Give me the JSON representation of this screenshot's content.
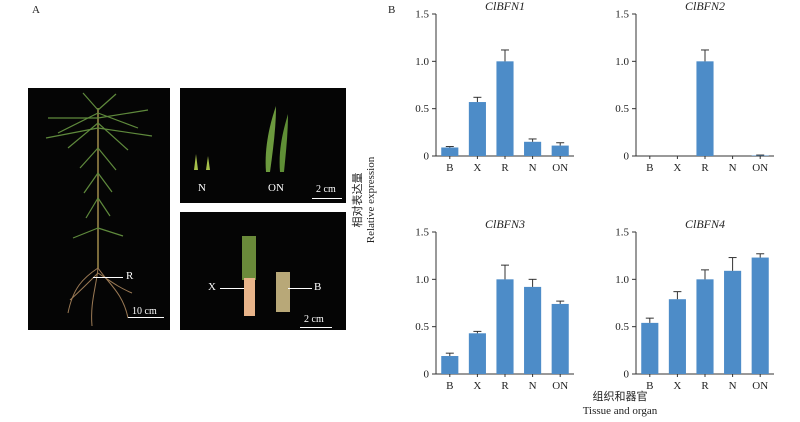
{
  "panel_a": {
    "label": "A",
    "main_photo": {
      "tissue_label": "R",
      "scale_bar": "10 cm"
    },
    "top_right_photo": {
      "needle_label": "N",
      "old_needle_label": "ON",
      "scale_bar": "2 cm"
    },
    "bottom_right_photo": {
      "xylem_label": "X",
      "bark_label": "B",
      "scale_bar": "2 cm"
    }
  },
  "panel_b": {
    "label": "B",
    "ylabel_cn": "相对表达量",
    "ylabel_en": "Relative expression",
    "xlabel_cn": "组织和器官",
    "xlabel_en": "Tissue and organ"
  },
  "colors": {
    "bar": "#4d8cc8",
    "axis": "#333333"
  },
  "chart_data": [
    {
      "type": "bar",
      "title": "ClBFN1",
      "categories": [
        "B",
        "X",
        "R",
        "N",
        "ON"
      ],
      "values": [
        0.09,
        0.57,
        1.0,
        0.15,
        0.11
      ],
      "errors": [
        0.01,
        0.05,
        0.12,
        0.03,
        0.03
      ],
      "ylim": [
        0,
        1.5
      ],
      "yticks": [
        "0",
        "0.5",
        "1.0",
        "1.5"
      ],
      "ytick_values": [
        0,
        0.5,
        1.0,
        1.5
      ]
    },
    {
      "type": "bar",
      "title": "ClBFN2",
      "categories": [
        "B",
        "X",
        "R",
        "N",
        "ON"
      ],
      "values": [
        0,
        0,
        1.0,
        0,
        0.005
      ],
      "errors": [
        0,
        0,
        0.12,
        0,
        0.005
      ],
      "ylim": [
        0,
        1.5
      ],
      "yticks": [
        "0",
        "0.5",
        "1.0",
        "1.5"
      ],
      "ytick_values": [
        0,
        0.5,
        1.0,
        1.5
      ]
    },
    {
      "type": "bar",
      "title": "ClBFN3",
      "categories": [
        "B",
        "X",
        "R",
        "N",
        "ON"
      ],
      "values": [
        0.19,
        0.43,
        1.0,
        0.92,
        0.74
      ],
      "errors": [
        0.03,
        0.02,
        0.15,
        0.08,
        0.03
      ],
      "ylim": [
        0,
        1.5
      ],
      "yticks": [
        "0",
        "0.5",
        "1.0",
        "1.5"
      ],
      "ytick_values": [
        0,
        0.5,
        1.0,
        1.5
      ]
    },
    {
      "type": "bar",
      "title": "ClBFN4",
      "categories": [
        "B",
        "X",
        "R",
        "N",
        "ON"
      ],
      "values": [
        0.54,
        0.79,
        1.0,
        1.09,
        1.23
      ],
      "errors": [
        0.05,
        0.08,
        0.1,
        0.14,
        0.04
      ],
      "ylim": [
        0,
        1.5
      ],
      "yticks": [
        "0",
        "0.5",
        "1.0",
        "1.5"
      ],
      "ytick_values": [
        0,
        0.5,
        1.0,
        1.5
      ]
    }
  ]
}
